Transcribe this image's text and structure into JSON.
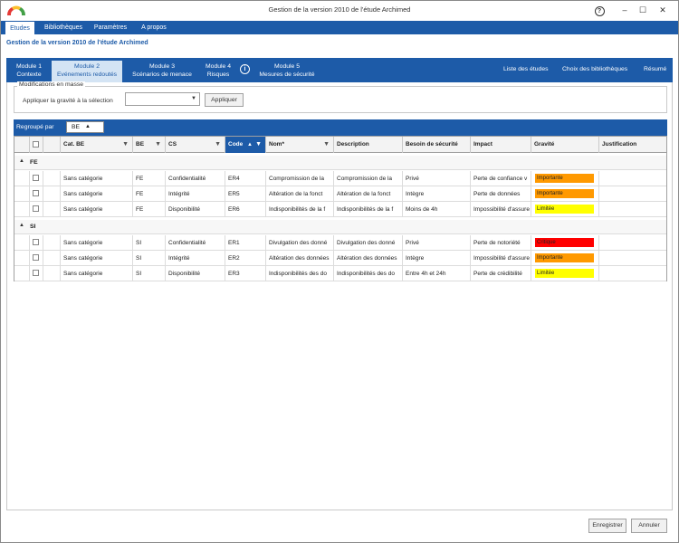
{
  "window": {
    "title": "Gestion de la version 2010 de l'étude Archimed"
  },
  "menu": [
    {
      "label": "Etudes",
      "active": true
    },
    {
      "label": "Bibliothèques",
      "active": false
    },
    {
      "label": "Paramètres",
      "active": false
    },
    {
      "label": "A propos",
      "active": false
    }
  ],
  "page": {
    "title": "Gestion de la version 2010 de l'étude Archimed"
  },
  "modules": [
    {
      "line1": "Module 1",
      "line2": "Contexte",
      "active": false
    },
    {
      "line1": "Module 2",
      "line2": "Evénements redoutés",
      "active": true
    },
    {
      "line1": "Module 3",
      "line2": "Scénarios de menace",
      "active": false
    },
    {
      "line1": "Module 4",
      "line2": "Risques",
      "active": false
    },
    {
      "line1": "Module 5",
      "line2": "Mesures de sécurité",
      "active": false
    }
  ],
  "nav_links": [
    "Liste des études",
    "Choix des bibliothèques",
    "Résumé"
  ],
  "mass": {
    "legend": "Modifications en masse",
    "apply_label": "Appliquer la gravité à la sélection",
    "select_value": "",
    "apply_button": "Appliquer"
  },
  "grouping": {
    "label": "Regroupé par",
    "chip": "BE"
  },
  "columns": [
    "Cat. BE",
    "BE",
    "CS",
    "Code",
    "Nom*",
    "Description",
    "Besoin de sécurité",
    "Impact",
    "Gravité",
    "Justification"
  ],
  "severity_colors": {
    "Importante": "#ff9900",
    "Limitée": "#ffff00",
    "Critique": "#ff0000"
  },
  "groups": [
    {
      "name": "FE",
      "rows": [
        {
          "cat": "Sans catégorie",
          "be": "FE",
          "cs": "Confidentialité",
          "code": "ER4",
          "nom": "Compromission de la",
          "desc": "Compromission de la",
          "besoin": "Privé",
          "impact": "Perte de confiance v",
          "gravite": "Importante",
          "justif": ""
        },
        {
          "cat": "Sans catégorie",
          "be": "FE",
          "cs": "Intégrité",
          "code": "ER5",
          "nom": "Altération de la fonct",
          "desc": "Altération de la fonct",
          "besoin": "Intègre",
          "impact": "Perte de données",
          "gravite": "Importante",
          "justif": ""
        },
        {
          "cat": "Sans catégorie",
          "be": "FE",
          "cs": "Disponibilité",
          "code": "ER6",
          "nom": "Indisponibilités de la f",
          "desc": "Indisponibilités de la f",
          "besoin": "Moins de 4h",
          "impact": "Impossibilité d'assure",
          "gravite": "Limitée",
          "justif": ""
        }
      ]
    },
    {
      "name": "SI",
      "rows": [
        {
          "cat": "Sans catégorie",
          "be": "SI",
          "cs": "Confidentialité",
          "code": "ER1",
          "nom": "Divulgation des donné",
          "desc": "Divulgation des donné",
          "besoin": "Privé",
          "impact": "Perte de notoriété",
          "gravite": "Critique",
          "justif": ""
        },
        {
          "cat": "Sans catégorie",
          "be": "SI",
          "cs": "Intégrité",
          "code": "ER2",
          "nom": "Altération des données",
          "desc": "Altération des données",
          "besoin": "Intègre",
          "impact": "Impossibilité d'assure",
          "gravite": "Importante",
          "justif": ""
        },
        {
          "cat": "Sans catégorie",
          "be": "SI",
          "cs": "Disponibilité",
          "code": "ER3",
          "nom": "Indisponibilités des do",
          "desc": "Indisponibilités des do",
          "besoin": "Entre 4h et 24h",
          "impact": "Perte de crédibilité",
          "gravite": "Limitée",
          "justif": ""
        }
      ]
    }
  ],
  "footer": {
    "save": "Enregistrer",
    "cancel": "Annuler"
  }
}
